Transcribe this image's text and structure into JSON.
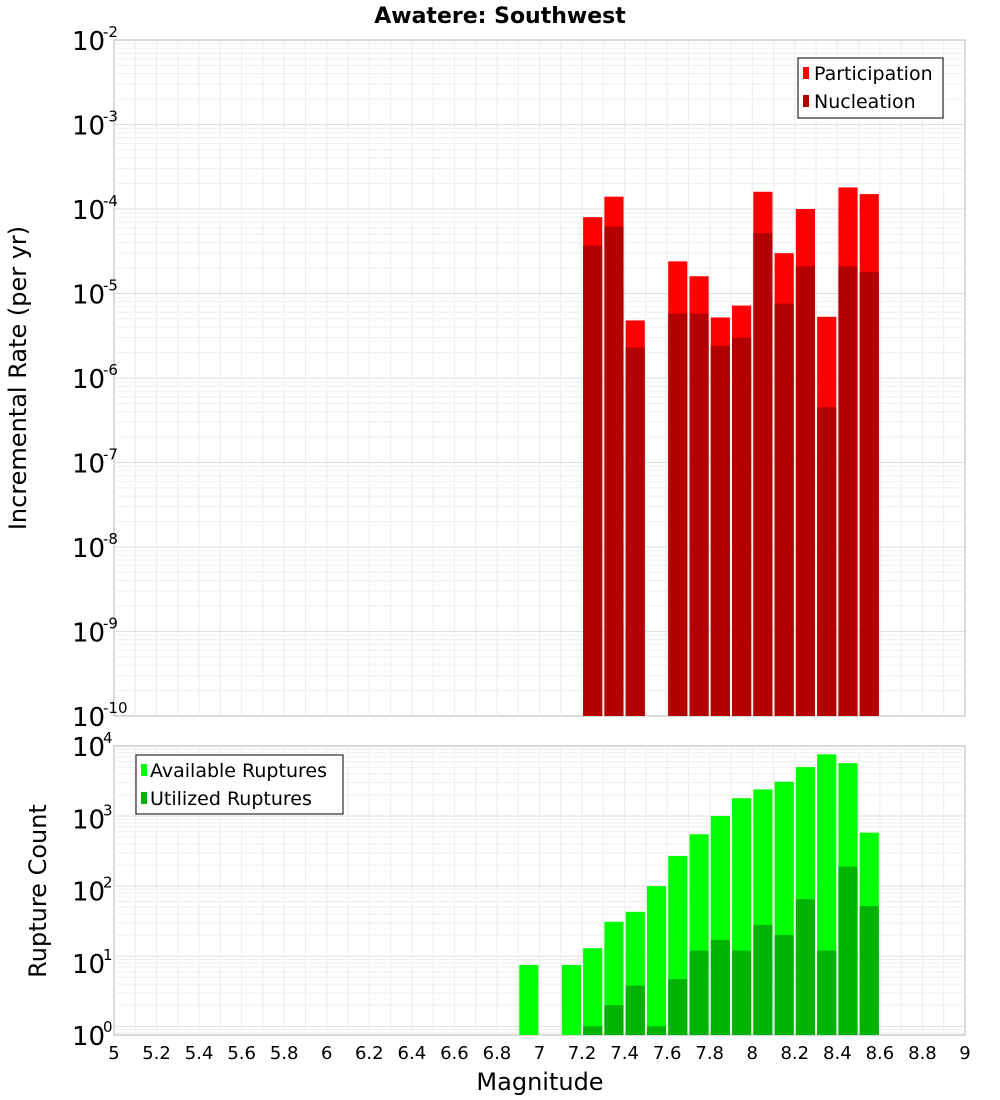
{
  "chart_data": [
    {
      "type": "bar",
      "title": "Awatere: Southwest",
      "xlabel": "Magnitude",
      "ylabel": "Incremental Rate (per yr)",
      "yscale": "log",
      "xlim": [
        5,
        9
      ],
      "ylim": [
        1e-10,
        0.01
      ],
      "legend_position": "top-right",
      "bar_width": 0.09,
      "series": [
        {
          "name": "Participation",
          "color": "#ff0000",
          "x": [
            7.25,
            7.35,
            7.45,
            7.65,
            7.75,
            7.85,
            7.95,
            8.05,
            8.15,
            8.25,
            8.35,
            8.45,
            8.55
          ],
          "values": [
            8e-05,
            0.00014,
            4.8e-06,
            2.4e-05,
            1.6e-05,
            5.2e-06,
            7.2e-06,
            0.00016,
            3e-05,
            0.0001,
            5.3e-06,
            0.00018,
            0.00015
          ]
        },
        {
          "name": "Nucleation",
          "color": "#b30000",
          "x": [
            7.25,
            7.35,
            7.45,
            7.65,
            7.75,
            7.85,
            7.95,
            8.05,
            8.15,
            8.25,
            8.35,
            8.45,
            8.55
          ],
          "values": [
            3.7e-05,
            6.2e-05,
            2.3e-06,
            5.8e-06,
            5.8e-06,
            2.4e-06,
            3e-06,
            5.2e-05,
            7.6e-06,
            2.1e-05,
            4.5e-07,
            2.1e-05,
            1.8e-05
          ]
        }
      ]
    },
    {
      "type": "bar",
      "title": "",
      "xlabel": "Magnitude",
      "ylabel": "Rupture Count",
      "yscale": "log",
      "xlim": [
        5,
        9
      ],
      "ylim": [
        0.75,
        10000
      ],
      "legend_position": "top-left",
      "bar_width": 0.09,
      "series": [
        {
          "name": "Available Ruptures",
          "color": "#00ff00",
          "x": [
            6.95,
            7.15,
            7.25,
            7.35,
            7.45,
            7.55,
            7.65,
            7.75,
            7.85,
            7.95,
            8.05,
            8.15,
            8.25,
            8.35,
            8.45,
            8.55
          ],
          "values": [
            7.5,
            7.5,
            13,
            31,
            43,
            100,
            270,
            550,
            1000,
            1800,
            2400,
            3100,
            5000,
            7600,
            5700,
            580
          ]
        },
        {
          "name": "Utilized Ruptures",
          "color": "#00b300",
          "x": [
            7.25,
            7.35,
            7.45,
            7.55,
            7.65,
            7.75,
            7.85,
            7.95,
            8.05,
            8.15,
            8.25,
            8.35,
            8.45,
            8.55
          ],
          "values": [
            1,
            2,
            3.8,
            1,
            4.7,
            12,
            17,
            12,
            28,
            20,
            65,
            12,
            190,
            52
          ]
        }
      ]
    }
  ],
  "x_ticks": [
    "5",
    "5.2",
    "5.4",
    "5.6",
    "5.8",
    "6",
    "6.2",
    "6.4",
    "6.6",
    "6.8",
    "7",
    "7.2",
    "7.4",
    "7.6",
    "7.8",
    "8",
    "8.2",
    "8.4",
    "8.6",
    "8.8",
    "9"
  ],
  "top_y_ticks": [
    {
      "base": "10",
      "exp": "-10"
    },
    {
      "base": "10",
      "exp": "-9"
    },
    {
      "base": "10",
      "exp": "-8"
    },
    {
      "base": "10",
      "exp": "-7"
    },
    {
      "base": "10",
      "exp": "-6"
    },
    {
      "base": "10",
      "exp": "-5"
    },
    {
      "base": "10",
      "exp": "-4"
    },
    {
      "base": "10",
      "exp": "-3"
    },
    {
      "base": "10",
      "exp": "-2"
    }
  ],
  "bottom_y_ticks": [
    {
      "base": "10",
      "exp": "0"
    },
    {
      "base": "10",
      "exp": "1"
    },
    {
      "base": "10",
      "exp": "2"
    },
    {
      "base": "10",
      "exp": "3"
    },
    {
      "base": "10",
      "exp": "4"
    }
  ]
}
